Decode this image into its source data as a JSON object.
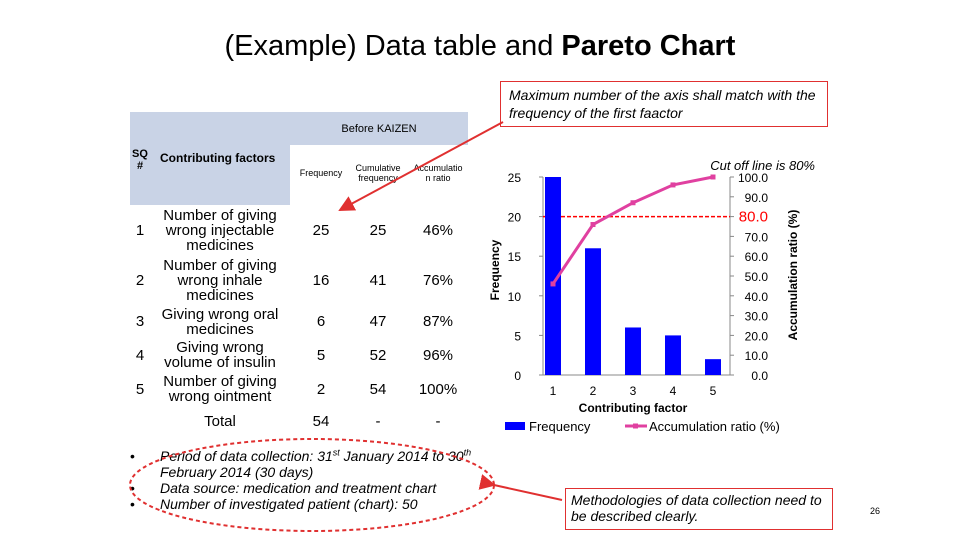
{
  "title": {
    "plain": "(Example) Data table and ",
    "bold": "Pareto Chart"
  },
  "table": {
    "group_header": "Before KAIZEN",
    "headers": [
      "SQ #",
      "Contributing factors",
      "Frequency",
      "Cumulative frequency",
      "Accumulatio n ratio"
    ],
    "rows": [
      [
        "1",
        "Number of giving wrong injectable medicines",
        "25",
        "25",
        "46%"
      ],
      [
        "2",
        "Number of giving wrong inhale medicines",
        "16",
        "41",
        "76%"
      ],
      [
        "3",
        "Giving wrong oral medicines",
        "6",
        "47",
        "87%"
      ],
      [
        "4",
        "Giving wrong volume of insulin",
        "5",
        "52",
        "96%"
      ],
      [
        "5",
        "Number of giving wrong ointment",
        "2",
        "54",
        "100%"
      ]
    ],
    "total": [
      "Total",
      "54",
      "-",
      "-"
    ]
  },
  "notes": [
    [
      "Period of data collection: 31",
      "st",
      " January 2014 to 30",
      "th",
      " February 2014 (30 days)"
    ],
    [
      "Data source: medication and treatment chart"
    ],
    [
      "Number of investigated patient (chart): 50"
    ]
  ],
  "callouts": [
    "Maximum number of the axis shall match with the frequency of the first faactor",
    "Methodologies of data collection need to be described clearly."
  ],
  "page_number": "26",
  "chart_data": {
    "type": "pareto",
    "annotation": "Cut off line is 80%",
    "cutoff": 80,
    "cutoff_color": "#ff0000",
    "x_label": "Contributing factor",
    "y_label": "Frequency",
    "y2_label": "Accumulation ratio (%)",
    "categories": [
      "1",
      "2",
      "3",
      "4",
      "5"
    ],
    "series": [
      {
        "name": "Frequency",
        "color": "#0000ff",
        "values": [
          25,
          16,
          6,
          5,
          2
        ]
      },
      {
        "name": "Accumulation ratio (%)",
        "color": "#e040a0",
        "values": [
          46,
          76,
          87,
          96,
          100
        ],
        "axis": "y2"
      }
    ],
    "ylim": [
      0,
      25
    ],
    "yticks": [
      0,
      5,
      10,
      15,
      20,
      25
    ],
    "y2lim": [
      0,
      100
    ],
    "y2ticks": [
      {
        "value": 0,
        "label": "0.0"
      },
      {
        "value": 10,
        "label": "10.0"
      },
      {
        "value": 20,
        "label": "20.0"
      },
      {
        "value": 30,
        "label": "30.0"
      },
      {
        "value": 40,
        "label": "40.0"
      },
      {
        "value": 50,
        "label": "50.0"
      },
      {
        "value": 60,
        "label": "60.0"
      },
      {
        "value": 70,
        "label": "70.0"
      },
      {
        "value": 80,
        "label": "80.0"
      },
      {
        "value": 90,
        "label": "90.0"
      },
      {
        "value": 100,
        "label": "100.0"
      }
    ],
    "legend": "bottom"
  }
}
